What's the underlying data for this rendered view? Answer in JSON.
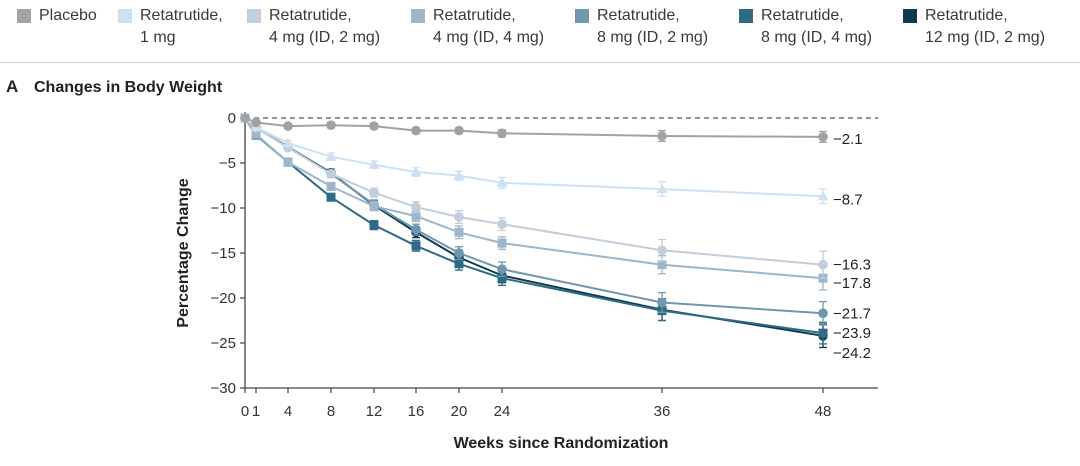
{
  "chart_data": {
    "type": "line",
    "panel_label": "A",
    "title": "Changes in Body Weight",
    "xlabel": "Weeks since Randomization",
    "ylabel": "Percentage Change",
    "x": [
      0,
      1,
      4,
      8,
      12,
      16,
      20,
      24,
      36,
      48
    ],
    "xticks": [
      0,
      1,
      4,
      8,
      12,
      16,
      20,
      24,
      36,
      48
    ],
    "yticks": [
      0,
      -5,
      -10,
      -15,
      -20,
      -25,
      -30
    ],
    "ylim": [
      -30,
      0
    ],
    "grid": false,
    "legend_placement": "top",
    "reference_line": {
      "y": 0,
      "style": "dashed"
    },
    "series": [
      {
        "name": "Placebo",
        "color": "#a2a2a2",
        "marker": "circle",
        "values": [
          0,
          -0.5,
          -0.9,
          -0.8,
          -0.9,
          -1.4,
          -1.4,
          -1.7,
          -2.0,
          -2.1
        ],
        "error": [
          0,
          0.2,
          0.2,
          0.3,
          0.3,
          0.3,
          0.3,
          0.4,
          0.6,
          0.6
        ],
        "end_label": "−2.1"
      },
      {
        "name": "Retatrutide, 1 mg",
        "color": "#cde1f4",
        "marker": "triangle",
        "values": [
          0,
          -1.0,
          -2.8,
          -4.3,
          -5.2,
          -6.0,
          -6.4,
          -7.2,
          -7.9,
          -8.7
        ],
        "error": [
          0,
          0.2,
          0.3,
          0.4,
          0.4,
          0.5,
          0.5,
          0.6,
          0.8,
          0.8
        ],
        "end_label": "−8.7"
      },
      {
        "name": "Retatrutide, 4 mg (ID, 2 mg)",
        "color": "#c1cedb",
        "marker": "circle",
        "values": [
          0,
          -1.1,
          -3.3,
          -6.2,
          -8.3,
          -9.9,
          -11.0,
          -11.8,
          -14.7,
          -16.3
        ],
        "error": [
          0,
          0.2,
          0.3,
          0.4,
          0.5,
          0.6,
          0.7,
          0.7,
          1.2,
          1.5
        ],
        "end_label": "−16.3"
      },
      {
        "name": "Retatrutide, 4 mg (ID, 4 mg)",
        "color": "#9cb7cb",
        "marker": "square",
        "values": [
          0,
          -1.8,
          -4.9,
          -7.6,
          -9.8,
          -10.9,
          -12.7,
          -13.9,
          -16.3,
          -17.8
        ],
        "error": [
          0,
          0.2,
          0.3,
          0.4,
          0.5,
          0.6,
          0.7,
          0.7,
          1.0,
          1.3
        ],
        "end_label": "−17.8"
      },
      {
        "name": "Retatrutide, 8 mg (ID, 2 mg)",
        "color": "#6f98af",
        "marker": "circle",
        "values": [
          0,
          -1.1,
          -3.2,
          -6.2,
          -9.6,
          -12.4,
          -15.0,
          -16.8,
          -20.5,
          -21.7
        ],
        "error": [
          0,
          0.2,
          0.3,
          0.4,
          0.5,
          0.6,
          0.7,
          0.8,
          1.1,
          1.3
        ],
        "end_label": "−21.7"
      },
      {
        "name": "Retatrutide, 8 mg (ID, 4 mg)",
        "color": "#2e6b86",
        "marker": "square",
        "values": [
          0,
          -1.9,
          -4.9,
          -8.8,
          -11.9,
          -14.2,
          -16.2,
          -17.8,
          -21.4,
          -23.9
        ],
        "error": [
          0,
          0.2,
          0.3,
          0.4,
          0.5,
          0.6,
          0.7,
          0.8,
          1.1,
          1.2
        ],
        "end_label": "−23.9"
      },
      {
        "name": "Retatrutide, 12 mg (ID, 2 mg)",
        "color": "#0c3a53",
        "marker": "circle",
        "values": [
          0,
          -1.1,
          -3.2,
          -6.1,
          -9.7,
          -12.7,
          -15.5,
          -17.5,
          -21.3,
          -24.2
        ],
        "error": [
          0,
          0.2,
          0.3,
          0.4,
          0.5,
          0.6,
          0.8,
          0.8,
          1.2,
          1.3
        ],
        "end_label": "−24.2"
      }
    ]
  }
}
